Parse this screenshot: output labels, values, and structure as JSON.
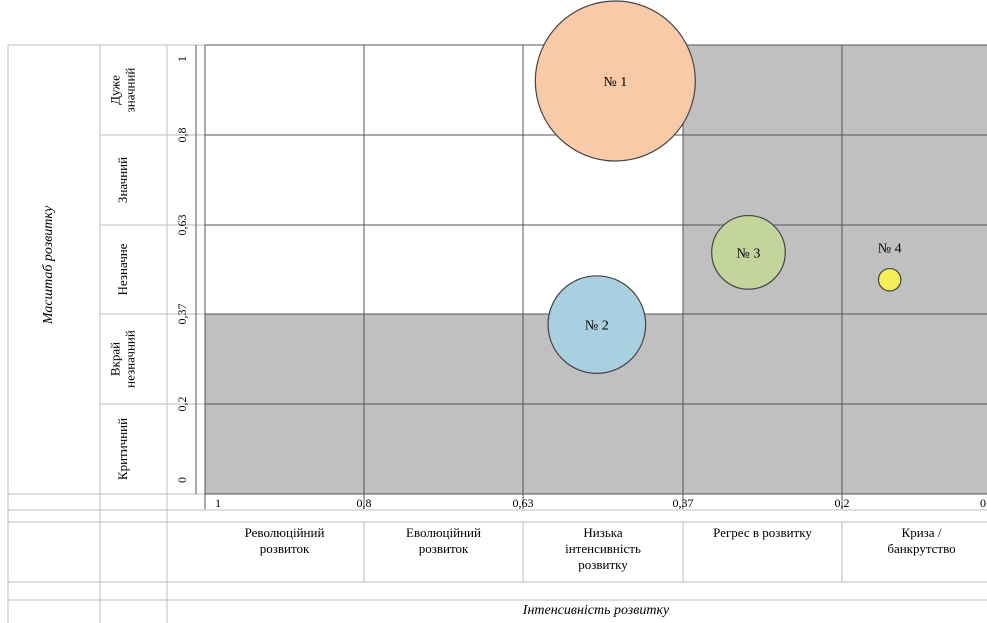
{
  "colors": {
    "shaded_cell": "#c0c0c0",
    "grid_line": "#555555",
    "table_line": "#bdbdbd",
    "bubble_stroke": "#444444"
  },
  "chart_data": {
    "type": "bubble-matrix",
    "ylabel": "Масштаб розвитку",
    "xlabel": "Інтенсивність розвитку",
    "x_ticks": [
      "1",
      "0,8",
      "0,63",
      "0,37",
      "0,2",
      "0"
    ],
    "y_ticks": [
      "0",
      "0,2",
      "0,37",
      "0,63",
      "0,8",
      "1"
    ],
    "x_reversed": true,
    "row_labels": [
      {
        "lines": [
          "Дуже",
          "значний"
        ]
      },
      {
        "lines": [
          "Значний"
        ]
      },
      {
        "lines": [
          "Незначне"
        ]
      },
      {
        "lines": [
          "Вкрай",
          "незначний"
        ]
      },
      {
        "lines": [
          "Критичний"
        ]
      }
    ],
    "column_labels": [
      {
        "lines": [
          "Революційний",
          "розвиток"
        ]
      },
      {
        "lines": [
          "Еволюційний",
          "розвиток"
        ]
      },
      {
        "lines": [
          "Низька",
          "інтенсивність",
          "розвитку"
        ]
      },
      {
        "lines": [
          "Регрес в розвитку"
        ]
      },
      {
        "lines": [
          "Криза /",
          "банкрутство"
        ]
      }
    ],
    "shaded_zones": "cells where scale < 0.37 or intensity < 0.37",
    "bubbles": [
      {
        "label": "№ 1",
        "intensity": 0.48,
        "scale": 0.92,
        "size": 1.0,
        "color": "#f9caa8"
      },
      {
        "label": "№ 2",
        "intensity": 0.51,
        "scale": 0.35,
        "size": 0.61,
        "color": "#a9d0e0"
      },
      {
        "label": "№ 3",
        "intensity": 0.3,
        "scale": 0.55,
        "size": 0.46,
        "color": "#c3d49c"
      },
      {
        "label": "№ 4",
        "intensity": 0.14,
        "scale": 0.47,
        "size": 0.14,
        "color": "#f6ee58"
      }
    ]
  }
}
